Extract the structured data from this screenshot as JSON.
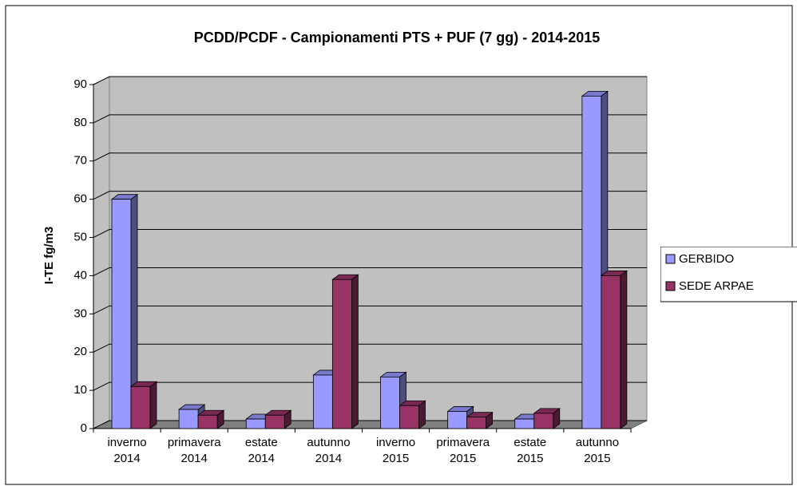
{
  "chart_data": {
    "type": "bar3d",
    "title": "PCDD/PCDF - Campionamenti PTS + PUF (7 gg)  - 2014-2015",
    "y_label": "I-TE fg/m3",
    "categories": [
      "inverno 2014",
      "primavera 2014",
      "estate 2014",
      "autunno 2014",
      "inverno 2015",
      "primavera 2015",
      "estate 2015",
      "autunno 2015"
    ],
    "series": [
      {
        "name": "GERBIDO",
        "color": "#9999ff",
        "values": [
          60,
          5,
          2.5,
          14,
          13.5,
          4.5,
          2.5,
          87
        ]
      },
      {
        "name": "SEDE ARPAE",
        "color": "#993366",
        "values": [
          11,
          3.5,
          3.5,
          39,
          6,
          3,
          4,
          40
        ]
      }
    ],
    "ylim": [
      0,
      90
    ],
    "yticks": [
      0,
      10,
      20,
      30,
      40,
      50,
      60,
      70,
      80,
      90
    ],
    "grid": true,
    "legend": "right"
  }
}
